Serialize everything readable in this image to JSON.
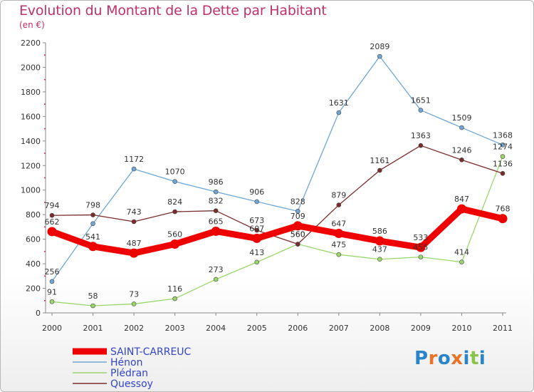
{
  "chart_data": {
    "type": "line",
    "title": "Evolution du Montant de la Dette par Habitant",
    "subtitle": "(en €)",
    "categories": [
      "2000",
      "2001",
      "2002",
      "2003",
      "2004",
      "2005",
      "2006",
      "2007",
      "2008",
      "2009",
      "2010",
      "2011"
    ],
    "ylim": [
      0,
      2200
    ],
    "yticks": [
      0,
      200,
      400,
      600,
      800,
      1000,
      1200,
      1400,
      1600,
      1800,
      2000,
      2200
    ],
    "grid": false,
    "legend": "bottom-left",
    "series": [
      {
        "name": "SAINT-CARREUC",
        "color": "#ee0000",
        "values": [
          662,
          541,
          487,
          560,
          665,
          607,
          709,
          647,
          586,
          533,
          847,
          768
        ],
        "labels": [
          "662",
          "541",
          "487",
          "560",
          "665",
          "607",
          "709",
          "647",
          "586",
          "533",
          "847",
          "768"
        ]
      },
      {
        "name": "Hénon",
        "color": "#6fa6d6",
        "values": [
          256,
          727,
          1172,
          1070,
          986,
          906,
          828,
          1631,
          2089,
          1651,
          1509,
          1368
        ],
        "labels": [
          "256",
          "",
          "1172",
          "1070",
          "986",
          "906",
          "828",
          "1631",
          "2089",
          "1651",
          "1509",
          "1368"
        ]
      },
      {
        "name": "Plédran",
        "color": "#99d66b",
        "values": [
          91,
          58,
          73,
          116,
          273,
          413,
          560,
          475,
          437,
          455,
          414,
          1274
        ],
        "labels": [
          "91",
          "58",
          "73",
          "116",
          "273",
          "413",
          "560",
          "475",
          "437",
          "455",
          "414",
          "1274"
        ]
      },
      {
        "name": "Quessoy",
        "color": "#7a2b2b",
        "values": [
          794,
          798,
          743,
          824,
          832,
          673,
          560,
          879,
          1161,
          1363,
          1246,
          1136
        ],
        "labels": [
          "794",
          "798",
          "743",
          "824",
          "832",
          "673",
          "560",
          "879",
          "1161",
          "1363",
          "1246",
          "1136"
        ]
      }
    ]
  },
  "logo": {
    "text": "Proxiti"
  }
}
